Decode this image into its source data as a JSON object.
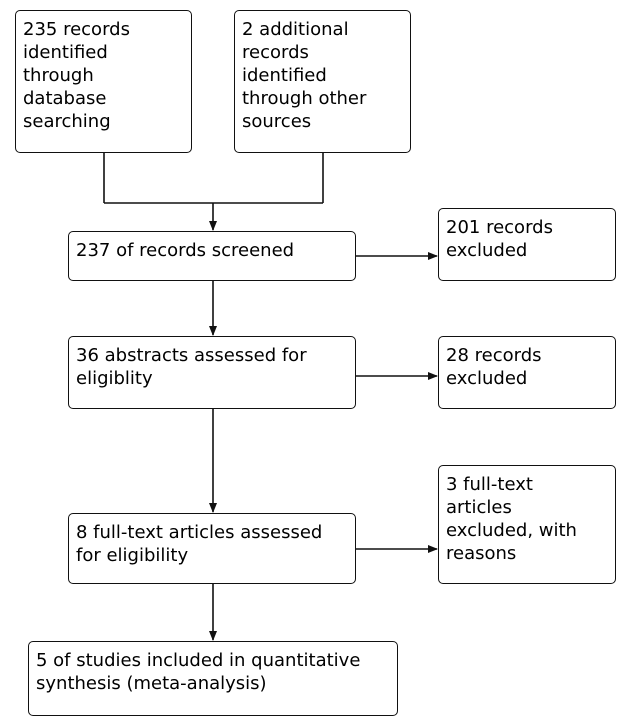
{
  "flowchart": {
    "identification": {
      "database": "235 records\nidentified\nthrough\ndatabase\nsearching",
      "other_sources": "2 additional\nrecords\nidentified\nthrough other\nsources"
    },
    "screening": {
      "screened": "237 of records screened",
      "excluded": "201 records\nexcluded"
    },
    "abstracts": {
      "assessed": "36 abstracts assessed for\neligiblity",
      "excluded": "28 records\nexcluded"
    },
    "eligibility": {
      "assessed": "8 full-text articles assessed\nfor eligibility",
      "excluded": "3 full-text\narticles\nexcluded, with\nreasons"
    },
    "included": {
      "studies": "5 of studies included in quantitative\nsynthesis (meta-analysis)"
    }
  }
}
